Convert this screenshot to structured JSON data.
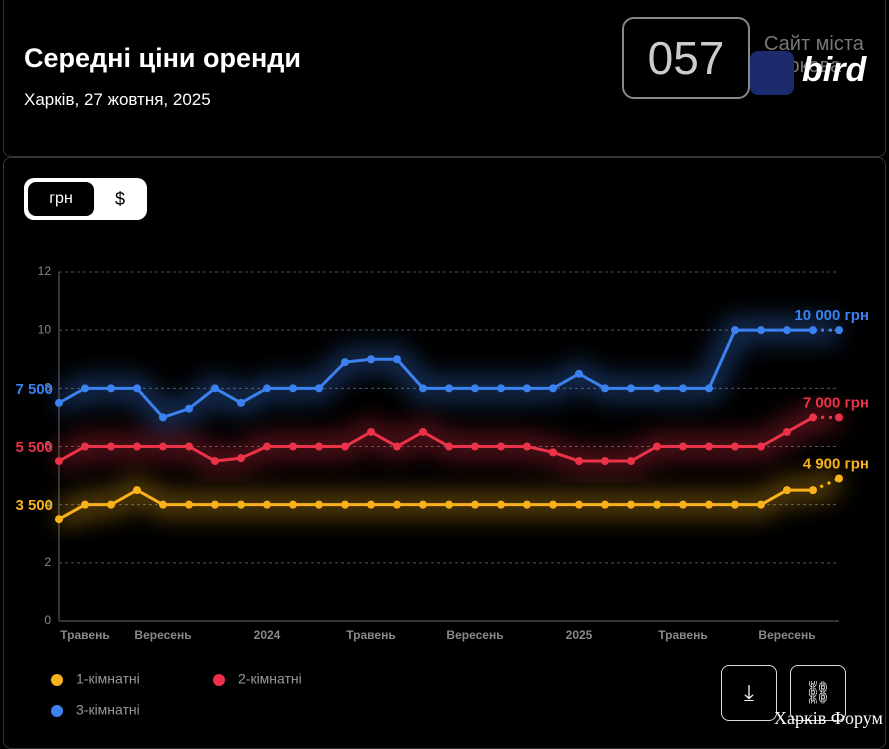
{
  "header": {
    "title": "Середні ціни оренди",
    "subtitle": "Харків, 27 жовтня, 2025"
  },
  "logo": {
    "badge": "057",
    "site": "Сайт міста Харкова",
    "brand": "bird"
  },
  "toggle": [
    "грн",
    "$"
  ],
  "watermark": "Харків Форум",
  "chart_data": {
    "type": "line",
    "categories": [
      null,
      "Травень",
      null,
      null,
      "Вересень",
      null,
      null,
      null,
      "2024",
      null,
      null,
      null,
      "Травень",
      null,
      null,
      null,
      "Вересень",
      null,
      null,
      null,
      "2025",
      null,
      null,
      null,
      "Травень",
      null,
      null,
      null,
      "Вересень",
      null,
      null
    ],
    "ylim": [
      0,
      12
    ],
    "yticks": [
      0,
      2,
      4,
      6,
      8,
      10,
      12
    ],
    "grid": true,
    "series": [
      {
        "name": "1-кімнатні",
        "color": "#f9b21c",
        "values": [
          3.5,
          4,
          4,
          4.5,
          4,
          4,
          4,
          4,
          4,
          4,
          4,
          4,
          4,
          4,
          4,
          4,
          4,
          4,
          4,
          4,
          4,
          4,
          4,
          4,
          4,
          4,
          4,
          4,
          4.5,
          4.5,
          4.9
        ],
        "value_labels": [
          "3 500",
          null,
          null,
          null,
          null,
          null,
          null,
          null,
          null,
          null,
          null,
          null,
          null,
          null,
          null,
          null,
          null,
          null,
          null,
          null,
          null,
          null,
          null,
          null,
          null,
          null,
          null,
          null,
          null,
          null,
          "4 900 грн"
        ]
      },
      {
        "name": "2-кімнатні",
        "color": "#ec3248",
        "values": [
          5.5,
          6,
          6,
          6,
          6,
          6,
          5.5,
          5.6,
          6,
          6,
          6,
          6,
          6.5,
          6,
          6.5,
          6,
          6,
          6,
          6,
          5.8,
          5.5,
          5.5,
          5.5,
          6,
          6,
          6,
          6,
          6,
          6.5,
          7,
          7
        ],
        "value_labels": [
          "5 500",
          null,
          null,
          null,
          null,
          null,
          null,
          null,
          null,
          null,
          null,
          null,
          null,
          null,
          null,
          null,
          null,
          null,
          null,
          null,
          null,
          null,
          null,
          null,
          null,
          null,
          null,
          null,
          null,
          null,
          "7 000 грн"
        ]
      },
      {
        "name": "3-кімнатні",
        "color": "#3b82f0",
        "values": [
          7.5,
          8,
          8,
          8,
          7,
          7.3,
          8,
          7.5,
          8,
          8,
          8,
          8.9,
          9,
          9,
          8,
          8,
          8,
          8,
          8,
          8,
          8.5,
          8,
          8,
          8,
          8,
          8,
          10,
          10,
          10,
          10,
          10
        ],
        "value_labels": [
          "7 500",
          null,
          null,
          null,
          null,
          null,
          null,
          null,
          null,
          null,
          null,
          null,
          null,
          null,
          null,
          null,
          null,
          null,
          null,
          null,
          null,
          null,
          null,
          null,
          null,
          null,
          null,
          null,
          null,
          null,
          "10 000 грн"
        ]
      }
    ]
  }
}
